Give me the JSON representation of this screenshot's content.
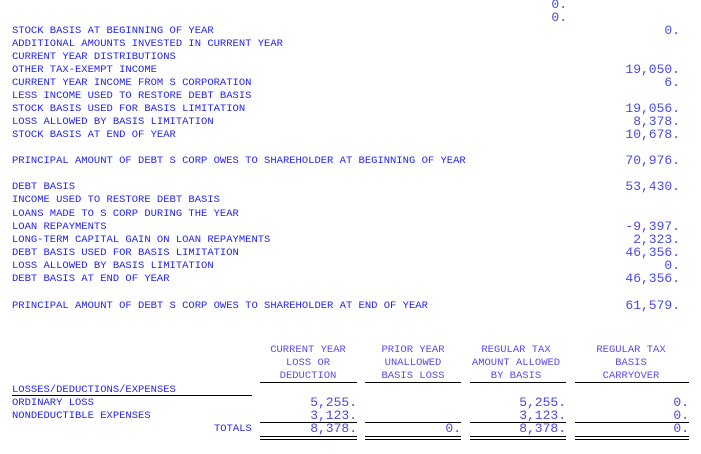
{
  "top_values": [
    "0.",
    "0."
  ],
  "stock_basis": [
    {
      "label": "STOCK BASIS AT BEGINNING OF YEAR",
      "value": "0."
    },
    {
      "label": "ADDITIONAL AMOUNTS INVESTED IN CURRENT YEAR",
      "value": ""
    },
    {
      "label": "CURRENT YEAR DISTRIBUTIONS",
      "value": ""
    },
    {
      "label": "OTHER TAX-EXEMPT INCOME",
      "value": "19,050."
    },
    {
      "label": "CURRENT YEAR INCOME FROM S CORPORATION",
      "value": "6."
    },
    {
      "label": "LESS INCOME USED TO RESTORE DEBT BASIS",
      "value": ""
    },
    {
      "label": "STOCK BASIS USED FOR BASIS LIMITATION",
      "value": "19,056."
    },
    {
      "label": "LOSS ALLOWED BY BASIS LIMITATION",
      "value": "8,378."
    },
    {
      "label": "STOCK BASIS AT END OF YEAR",
      "value": "10,678."
    }
  ],
  "principal_begin": {
    "label": "PRINCIPAL AMOUNT OF DEBT S CORP OWES TO SHAREHOLDER AT BEGINNING OF YEAR",
    "value": "70,976."
  },
  "debt_basis": [
    {
      "label": "DEBT BASIS",
      "value": "53,430."
    },
    {
      "label": "INCOME USED TO RESTORE DEBT BASIS",
      "value": ""
    },
    {
      "label": "LOANS MADE TO S CORP DURING THE YEAR",
      "value": ""
    },
    {
      "label": "LOAN REPAYMENTS",
      "value": "-9,397."
    },
    {
      "label": "LONG-TERM CAPITAL GAIN ON LOAN REPAYMENTS",
      "value": "2,323."
    },
    {
      "label": "DEBT BASIS USED FOR BASIS LIMITATION",
      "value": "46,356."
    },
    {
      "label": "LOSS ALLOWED BY BASIS LIMITATION",
      "value": "0."
    },
    {
      "label": "DEBT BASIS AT END OF YEAR",
      "value": "46,356."
    }
  ],
  "principal_end": {
    "label": "PRINCIPAL AMOUNT OF DEBT S CORP OWES TO SHAREHOLDER AT END OF YEAR",
    "value": "61,579."
  },
  "table": {
    "headers": [
      "CURRENT YEAR\nLOSS OR\nDEDUCTION",
      "PRIOR YEAR\nUNALLOWED\nBASIS LOSS",
      "REGULAR TAX\nAMOUNT ALLOWED\nBY BASIS",
      "REGULAR TAX\nBASIS\nCARRYOVER"
    ],
    "section_label": "LOSSES/DEDUCTIONS/EXPENSES",
    "rows": [
      {
        "label": "ORDINARY LOSS",
        "values": [
          "5,255.",
          "",
          "5,255.",
          "0."
        ]
      },
      {
        "label": "NONDEDUCTIBLE EXPENSES",
        "values": [
          "3,123.",
          "",
          "3,123.",
          "0."
        ]
      }
    ],
    "totals": {
      "label": "TOTALS",
      "values": [
        "8,378.",
        "0.",
        "8,378.",
        "0."
      ]
    }
  }
}
